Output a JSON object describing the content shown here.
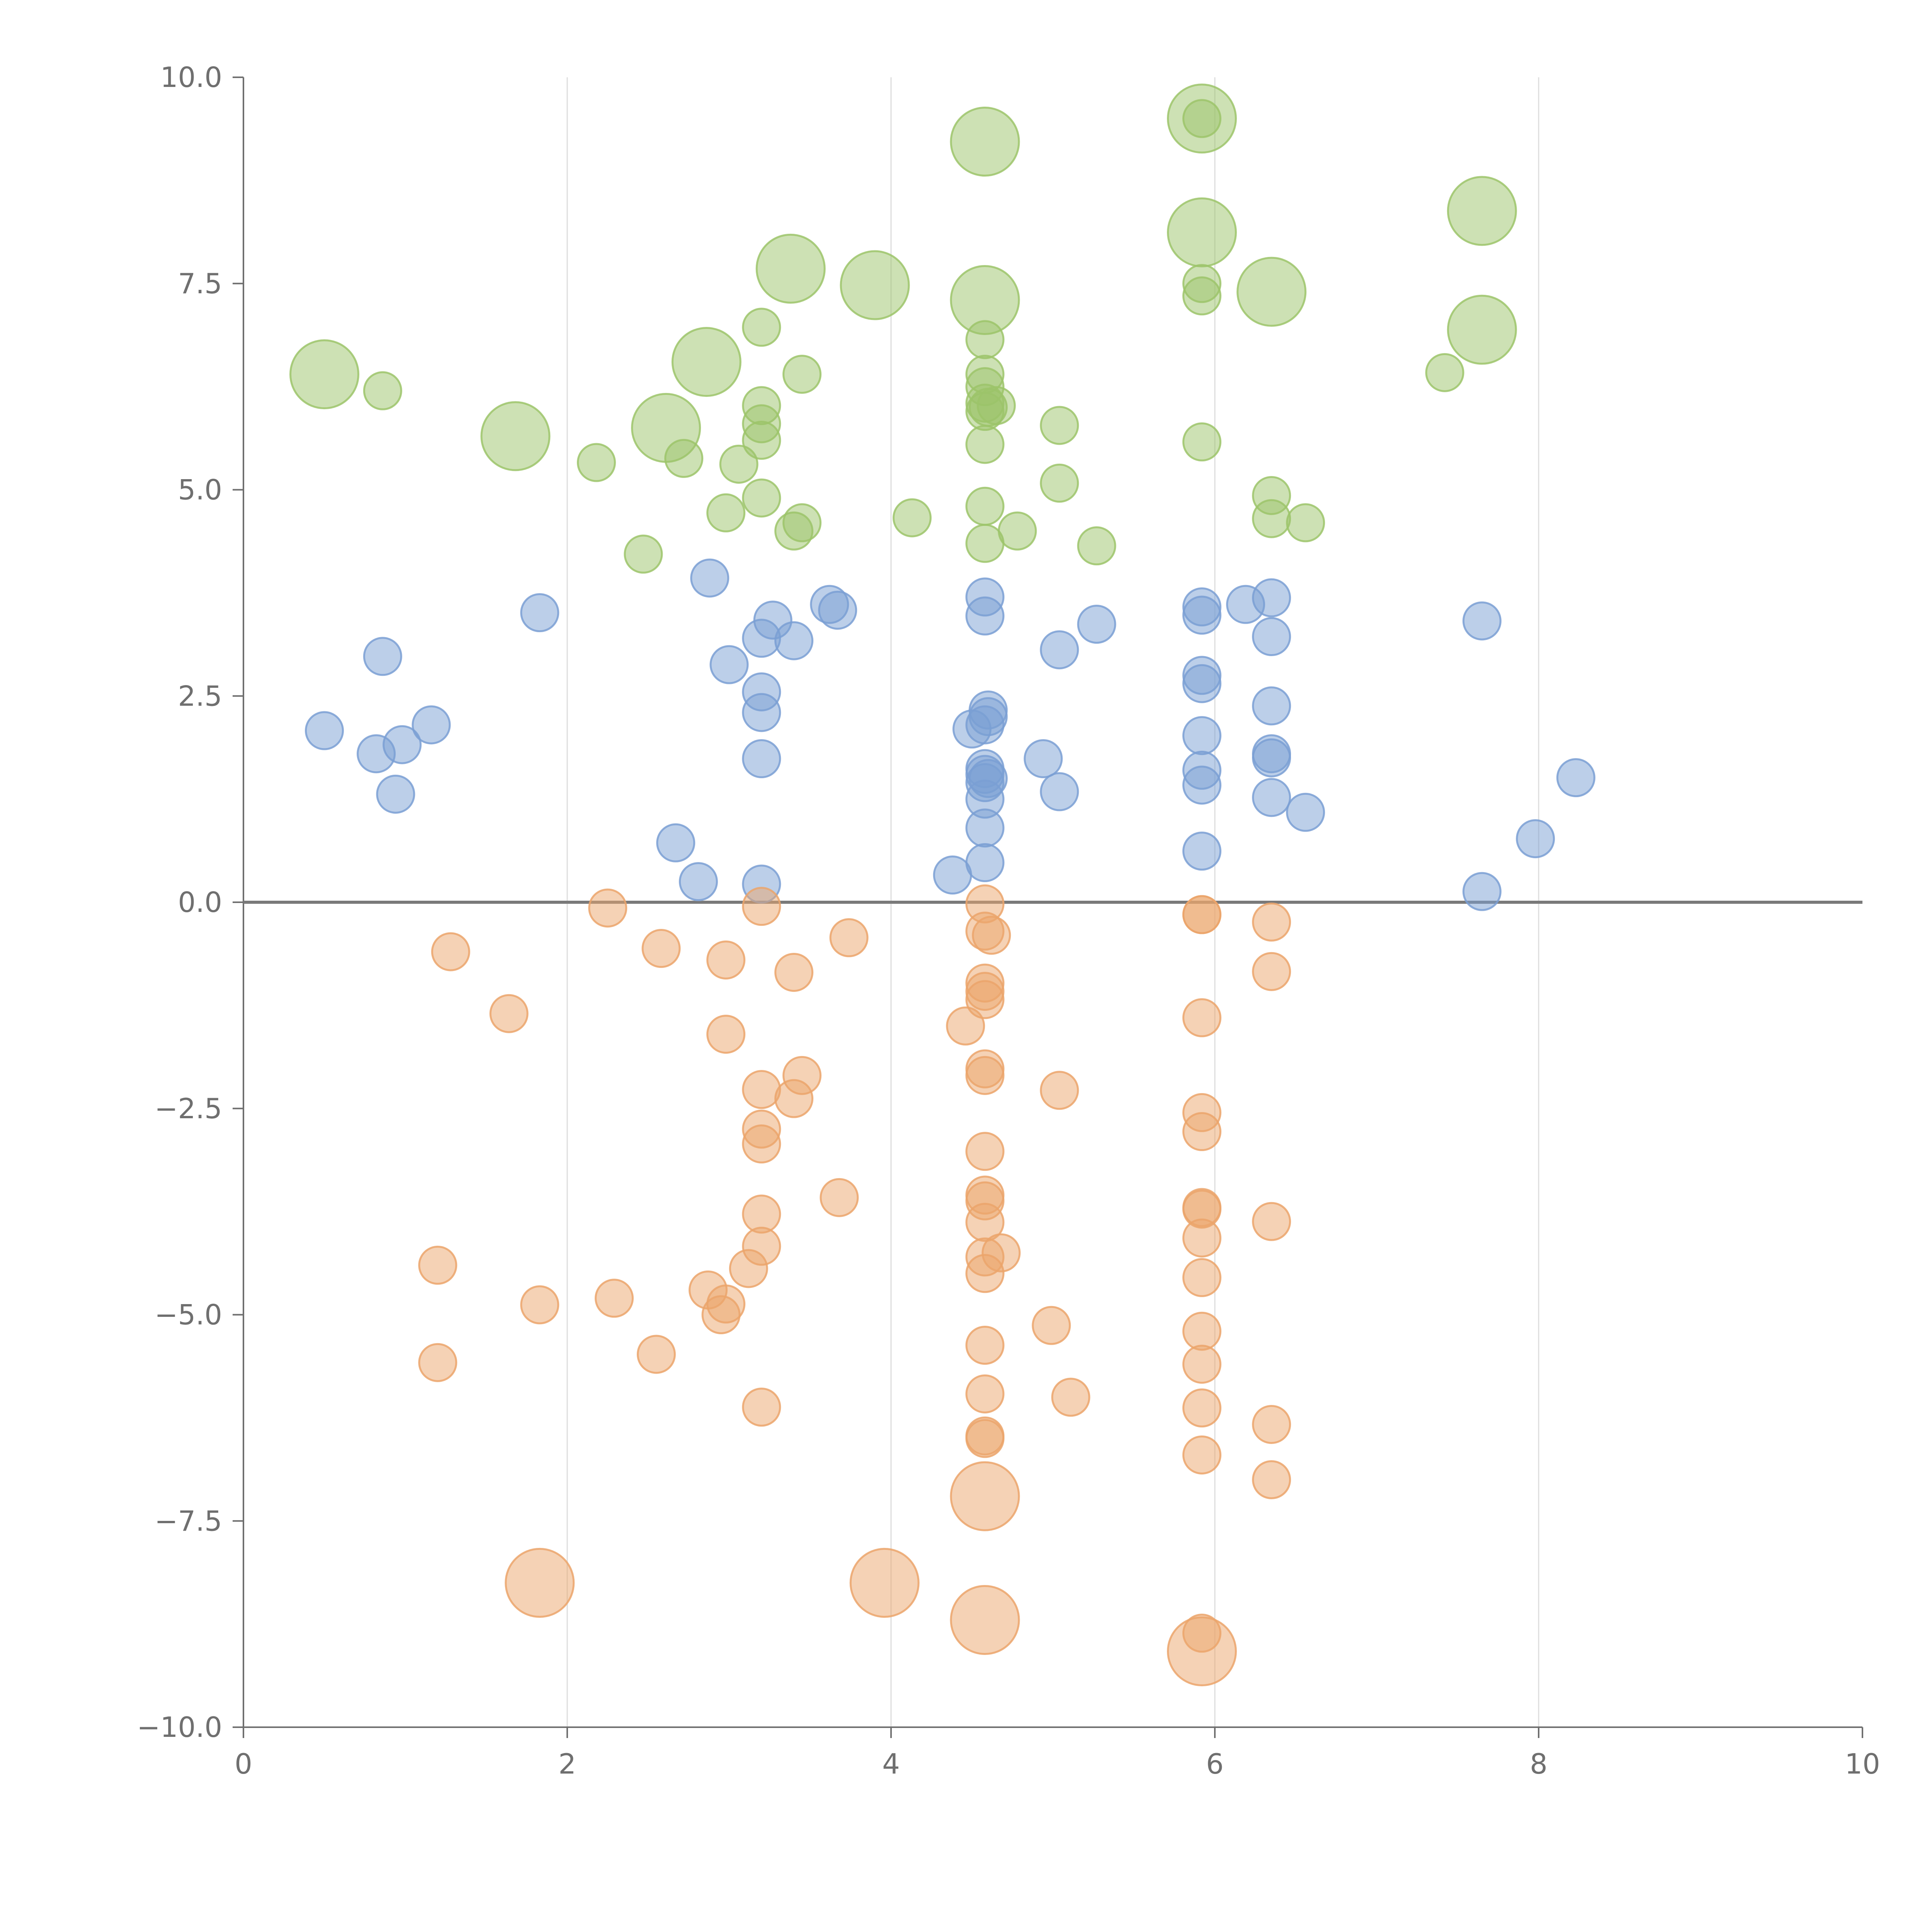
{
  "chart_data": {
    "type": "scatter",
    "title": "",
    "xlabel": "",
    "ylabel": "",
    "xlim": [
      0,
      10
    ],
    "ylim": [
      -10,
      10
    ],
    "x_ticks": [
      "0",
      "2",
      "4",
      "6",
      "8",
      "10"
    ],
    "y_ticks": [
      "10.0",
      "7.5",
      "5.0",
      "2.5",
      "0.0",
      "−2.5",
      "−5.0",
      "−7.5",
      "−10.0"
    ],
    "x_tick_values": [
      0,
      2,
      4,
      6,
      8,
      10
    ],
    "y_tick_values": [
      10,
      7.5,
      5,
      2.5,
      0,
      -2.5,
      -5,
      -7.5,
      -10
    ],
    "grid": "vertical",
    "zero_line": true,
    "legend": "none",
    "colors": {
      "green": "#9cc46a",
      "blue": "#7a9fd3",
      "orange": "#eba56b"
    },
    "series": [
      {
        "color": "green",
        "points": [
          [
            0.5,
            6.4,
            2
          ],
          [
            0.86,
            6.2,
            1
          ],
          [
            1.68,
            5.65,
            2
          ],
          [
            2.18,
            5.33,
            1
          ],
          [
            2.47,
            4.22,
            1
          ],
          [
            2.61,
            5.75,
            2
          ],
          [
            2.72,
            5.38,
            1
          ],
          [
            2.86,
            6.55,
            2
          ],
          [
            2.98,
            4.72,
            1
          ],
          [
            3.06,
            5.31,
            1
          ],
          [
            3.2,
            6.97,
            1
          ],
          [
            3.2,
            6.02,
            1
          ],
          [
            3.2,
            5.8,
            1
          ],
          [
            3.2,
            5.6,
            1
          ],
          [
            3.2,
            4.9,
            1
          ],
          [
            3.38,
            7.68,
            2
          ],
          [
            3.4,
            4.5,
            1
          ],
          [
            3.45,
            4.6,
            1
          ],
          [
            3.45,
            6.4,
            1
          ],
          [
            3.9,
            7.48,
            2
          ],
          [
            4.13,
            4.66,
            1
          ],
          [
            4.58,
            9.22,
            2
          ],
          [
            4.58,
            7.3,
            2
          ],
          [
            4.58,
            6.82,
            1
          ],
          [
            4.58,
            6.4,
            1
          ],
          [
            4.58,
            6.25,
            1
          ],
          [
            4.58,
            6.05,
            1
          ],
          [
            4.58,
            5.95,
            1
          ],
          [
            4.6,
            6.0,
            1
          ],
          [
            4.65,
            6.02,
            1
          ],
          [
            4.58,
            5.55,
            1
          ],
          [
            4.58,
            4.8,
            1
          ],
          [
            4.58,
            4.35,
            1
          ],
          [
            4.78,
            4.5,
            1
          ],
          [
            5.04,
            5.78,
            1
          ],
          [
            5.04,
            5.08,
            1
          ],
          [
            5.27,
            4.32,
            1
          ],
          [
            5.92,
            9.5,
            2
          ],
          [
            5.92,
            9.5,
            1
          ],
          [
            5.92,
            8.12,
            2
          ],
          [
            5.92,
            7.5,
            1
          ],
          [
            5.92,
            7.35,
            1
          ],
          [
            5.92,
            5.58,
            1
          ],
          [
            6.35,
            7.4,
            2
          ],
          [
            6.35,
            4.93,
            1
          ],
          [
            6.35,
            4.65,
            1
          ],
          [
            6.56,
            4.6,
            1
          ],
          [
            7.42,
            6.42,
            1
          ],
          [
            7.65,
            8.38,
            2
          ],
          [
            7.65,
            6.94,
            2
          ]
        ]
      },
      {
        "color": "blue",
        "points": [
          [
            0.5,
            2.08,
            1
          ],
          [
            0.82,
            1.8,
            1
          ],
          [
            0.86,
            2.98,
            1
          ],
          [
            0.94,
            1.31,
            1
          ],
          [
            0.98,
            1.91,
            1
          ],
          [
            1.16,
            2.15,
            1
          ],
          [
            1.83,
            3.51,
            1
          ],
          [
            2.67,
            0.72,
            1
          ],
          [
            2.81,
            0.25,
            1
          ],
          [
            2.88,
            3.93,
            1
          ],
          [
            3.0,
            2.88,
            1
          ],
          [
            3.2,
            3.2,
            1
          ],
          [
            3.2,
            2.55,
            1
          ],
          [
            3.2,
            2.3,
            1
          ],
          [
            3.2,
            1.74,
            1
          ],
          [
            3.2,
            0.22,
            1
          ],
          [
            3.27,
            3.42,
            1
          ],
          [
            3.4,
            3.17,
            1
          ],
          [
            3.62,
            3.61,
            1
          ],
          [
            3.67,
            3.54,
            1
          ],
          [
            4.38,
            0.33,
            1
          ],
          [
            4.5,
            2.1,
            1
          ],
          [
            4.58,
            3.7,
            1
          ],
          [
            4.58,
            3.47,
            1
          ],
          [
            4.6,
            2.33,
            1
          ],
          [
            4.6,
            2.25,
            1
          ],
          [
            4.58,
            2.15,
            1
          ],
          [
            4.58,
            1.62,
            1
          ],
          [
            4.58,
            1.55,
            1
          ],
          [
            4.58,
            1.45,
            1
          ],
          [
            4.6,
            1.5,
            1
          ],
          [
            4.58,
            1.25,
            1
          ],
          [
            4.58,
            0.9,
            1
          ],
          [
            4.58,
            0.48,
            1
          ],
          [
            4.94,
            1.74,
            1
          ],
          [
            5.04,
            3.06,
            1
          ],
          [
            5.04,
            1.34,
            1
          ],
          [
            5.27,
            3.37,
            1
          ],
          [
            5.92,
            3.58,
            1
          ],
          [
            5.92,
            3.48,
            1
          ],
          [
            5.92,
            2.75,
            1
          ],
          [
            5.92,
            2.65,
            1
          ],
          [
            5.92,
            2.02,
            1
          ],
          [
            5.92,
            1.6,
            1
          ],
          [
            5.92,
            1.42,
            1
          ],
          [
            5.92,
            0.62,
            1
          ],
          [
            6.19,
            3.61,
            1
          ],
          [
            6.35,
            3.69,
            1
          ],
          [
            6.35,
            3.22,
            1
          ],
          [
            6.35,
            2.38,
            1
          ],
          [
            6.35,
            1.8,
            1
          ],
          [
            6.35,
            1.75,
            1
          ],
          [
            6.35,
            1.27,
            1
          ],
          [
            6.56,
            1.09,
            1
          ],
          [
            7.65,
            3.41,
            1
          ],
          [
            7.65,
            0.13,
            1
          ],
          [
            7.98,
            0.77,
            1
          ],
          [
            8.23,
            1.51,
            1
          ]
        ]
      },
      {
        "color": "orange",
        "points": [
          [
            1.2,
            -4.4,
            1
          ],
          [
            1.2,
            -5.58,
            1
          ],
          [
            1.28,
            -0.6,
            1
          ],
          [
            1.64,
            -1.35,
            1
          ],
          [
            1.83,
            -4.88,
            1
          ],
          [
            1.83,
            -8.25,
            2
          ],
          [
            2.25,
            -0.07,
            1
          ],
          [
            2.29,
            -4.8,
            1
          ],
          [
            2.55,
            -5.48,
            1
          ],
          [
            2.58,
            -0.56,
            1
          ],
          [
            2.87,
            -4.7,
            1
          ],
          [
            2.95,
            -5.0,
            1
          ],
          [
            2.98,
            -4.87,
            1
          ],
          [
            2.98,
            -0.7,
            1
          ],
          [
            2.98,
            -1.6,
            1
          ],
          [
            3.12,
            -4.44,
            1
          ],
          [
            3.2,
            -0.05,
            1
          ],
          [
            3.2,
            -2.27,
            1
          ],
          [
            3.2,
            -2.75,
            1
          ],
          [
            3.2,
            -2.93,
            1
          ],
          [
            3.2,
            -3.78,
            1
          ],
          [
            3.2,
            -4.17,
            1
          ],
          [
            3.2,
            -6.12,
            1
          ],
          [
            3.4,
            -0.85,
            1
          ],
          [
            3.4,
            -2.38,
            1
          ],
          [
            3.45,
            -2.1,
            1
          ],
          [
            3.68,
            -3.58,
            1
          ],
          [
            3.74,
            -0.43,
            1
          ],
          [
            3.96,
            -8.25,
            2
          ],
          [
            4.46,
            -1.5,
            1
          ],
          [
            4.58,
            -0.02,
            1
          ],
          [
            4.58,
            -0.35,
            1
          ],
          [
            4.62,
            -0.4,
            1
          ],
          [
            4.58,
            -0.98,
            1
          ],
          [
            4.58,
            -1.08,
            1
          ],
          [
            4.58,
            -1.18,
            1
          ],
          [
            4.58,
            -2.02,
            1
          ],
          [
            4.58,
            -2.1,
            1
          ],
          [
            4.58,
            -3.02,
            1
          ],
          [
            4.58,
            -3.55,
            1
          ],
          [
            4.58,
            -3.62,
            1
          ],
          [
            4.58,
            -3.88,
            1
          ],
          [
            4.58,
            -4.3,
            1
          ],
          [
            4.68,
            -4.25,
            1
          ],
          [
            4.58,
            -4.5,
            1
          ],
          [
            4.58,
            -5.37,
            1
          ],
          [
            4.58,
            -5.96,
            1
          ],
          [
            4.58,
            -6.47,
            1
          ],
          [
            4.58,
            -6.5,
            1
          ],
          [
            4.58,
            -7.2,
            2
          ],
          [
            4.58,
            -8.7,
            2
          ],
          [
            4.99,
            -5.13,
            1
          ],
          [
            5.04,
            -2.28,
            1
          ],
          [
            5.11,
            -6.0,
            1
          ],
          [
            5.92,
            -0.15,
            1
          ],
          [
            5.92,
            -0.15,
            1
          ],
          [
            5.92,
            -1.4,
            1
          ],
          [
            5.92,
            -2.55,
            1
          ],
          [
            5.92,
            -2.78,
            1
          ],
          [
            5.92,
            -3.7,
            1
          ],
          [
            5.92,
            -3.72,
            1
          ],
          [
            5.92,
            -4.07,
            1
          ],
          [
            5.92,
            -4.55,
            1
          ],
          [
            5.92,
            -5.2,
            1
          ],
          [
            5.92,
            -5.6,
            1
          ],
          [
            5.92,
            -6.13,
            1
          ],
          [
            5.92,
            -6.7,
            1
          ],
          [
            5.92,
            -8.86,
            1
          ],
          [
            5.92,
            -9.08,
            2
          ],
          [
            6.35,
            -0.24,
            1
          ],
          [
            6.35,
            -0.84,
            1
          ],
          [
            6.35,
            -3.87,
            1
          ],
          [
            6.35,
            -6.33,
            1
          ],
          [
            6.35,
            -7.0,
            1
          ]
        ]
      }
    ]
  }
}
